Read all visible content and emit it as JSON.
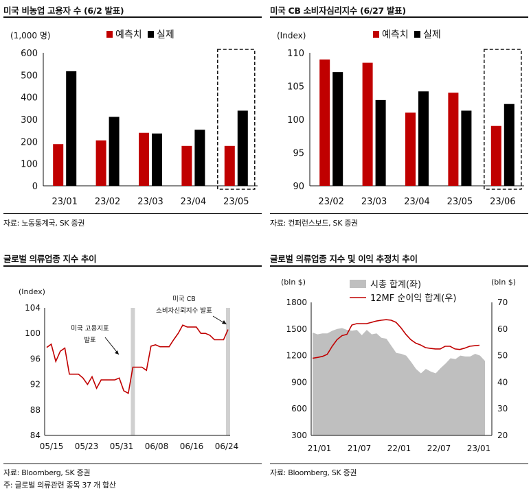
{
  "panels": {
    "p1": {
      "title": "미국 비농업 고용자 수 (6/2 발표)",
      "source": "자료: 노동통계국, SK 증권"
    },
    "p2": {
      "title": "미국 CB 소비자심리지수 (6/27 발표)",
      "source": "자료: 컨퍼런스보드, SK 증권"
    },
    "p3": {
      "title": "글로벌 의류업종 지수 추이",
      "source": "자료: Bloomberg, SK 증권",
      "note": "주: 글로벌 의류관련 종목 37 개 합산"
    },
    "p4": {
      "title": "글로벌 의류업종 지수 및 이익 추정치 추이",
      "source": "자료: Bloomberg, SK 증권"
    }
  },
  "colors": {
    "forecast": "#c00000",
    "actual": "#000000",
    "line": "#c00000",
    "area": "#bfbfbf",
    "highlight": "#d0d0d0"
  },
  "chart_data": [
    {
      "type": "bar",
      "title": "미국 비농업 고용자 수 (6/2 발표)",
      "ylabel": "(1,000 명)",
      "categories": [
        "23/01",
        "23/02",
        "23/03",
        "23/04",
        "23/05"
      ],
      "series": [
        {
          "name": "예측치",
          "values": [
            188,
            205,
            239,
            180,
            180
          ]
        },
        {
          "name": "실제",
          "values": [
            517,
            311,
            236,
            253,
            339
          ]
        }
      ],
      "ylim": [
        0,
        600
      ],
      "yticks": [
        0,
        100,
        200,
        300,
        400,
        500,
        600
      ],
      "highlight_category": "23/05",
      "legend": "top"
    },
    {
      "type": "bar",
      "title": "미국 CB 소비자심리지수 (6/27 발표)",
      "ylabel": "(Index)",
      "categories": [
        "23/02",
        "23/03",
        "23/04",
        "23/05",
        "23/06"
      ],
      "series": [
        {
          "name": "예측치",
          "values": [
            109.0,
            108.5,
            101.0,
            104.0,
            99.0
          ]
        },
        {
          "name": "실제",
          "values": [
            107.1,
            102.9,
            104.2,
            101.3,
            102.3
          ]
        }
      ],
      "ylim": [
        90,
        110
      ],
      "yticks": [
        90,
        95,
        100,
        105,
        110
      ],
      "highlight_category": "23/06",
      "legend": "top"
    },
    {
      "type": "line",
      "title": "글로벌 의류업종 지수 추이",
      "ylabel": "(Index)",
      "ylim": [
        84,
        104
      ],
      "yticks": [
        84,
        88,
        92,
        96,
        100,
        104
      ],
      "xticklabels": [
        "05/15",
        "05/23",
        "05/31",
        "06/08",
        "06/16",
        "06/24"
      ],
      "series": [
        {
          "values": [
            97.8,
            98.3,
            95.6,
            97.2,
            97.7,
            93.6,
            93.6,
            93.6,
            93.0,
            92.0,
            93.2,
            91.4,
            92.7,
            92.7,
            92.7,
            92.7,
            93.0,
            91.0,
            90.6,
            94.7,
            94.7,
            94.7,
            94.2,
            98.0,
            98.2,
            97.9,
            97.9,
            97.9,
            99.0,
            100.0,
            101.3,
            101.0,
            101.0,
            101.0,
            100.0,
            100.0,
            99.7,
            99.0,
            99.0,
            99.0,
            100.6
          ]
        }
      ],
      "annotations": [
        "미국 고용지표",
        "발표",
        "미국 CB",
        "소비자신뢰지수 발표"
      ]
    },
    {
      "type": "area",
      "title": "글로벌 의류업종 지수 및 이익 추정치 추이",
      "ylabel": "(bln $)",
      "y2label": "(bln $)",
      "ylim": [
        300,
        1800
      ],
      "yticks": [
        300,
        600,
        900,
        1200,
        1500,
        1800
      ],
      "y2lim": [
        20,
        70
      ],
      "y2ticks": [
        20,
        30,
        40,
        50,
        60,
        70
      ],
      "xticklabels": [
        "21/01",
        "21/07",
        "22/01",
        "22/07",
        "23/01"
      ],
      "series": [
        {
          "name": "시총 합계(좌)",
          "axis": "left",
          "values": [
            1460,
            1440,
            1450,
            1450,
            1480,
            1500,
            1510,
            1490,
            1480,
            1490,
            1430,
            1490,
            1440,
            1450,
            1400,
            1390,
            1310,
            1230,
            1220,
            1200,
            1130,
            1050,
            1000,
            1050,
            1020,
            1000,
            1060,
            1110,
            1170,
            1160,
            1200,
            1190,
            1190,
            1220,
            1200,
            1140
          ]
        },
        {
          "name": "12MF 순이익 합계(우)",
          "axis": "right",
          "values": [
            49.0,
            49.3,
            49.7,
            50.5,
            53.5,
            56.0,
            57.5,
            58.0,
            61.5,
            62.0,
            62.0,
            62.0,
            62.5,
            63.0,
            63.3,
            63.5,
            63.3,
            62.5,
            60.5,
            58.0,
            56.0,
            54.7,
            54.0,
            53.0,
            52.7,
            52.5,
            52.5,
            53.5,
            53.5,
            52.5,
            52.3,
            52.8,
            53.5,
            53.7,
            53.9
          ]
        }
      ],
      "legend": "top"
    }
  ]
}
